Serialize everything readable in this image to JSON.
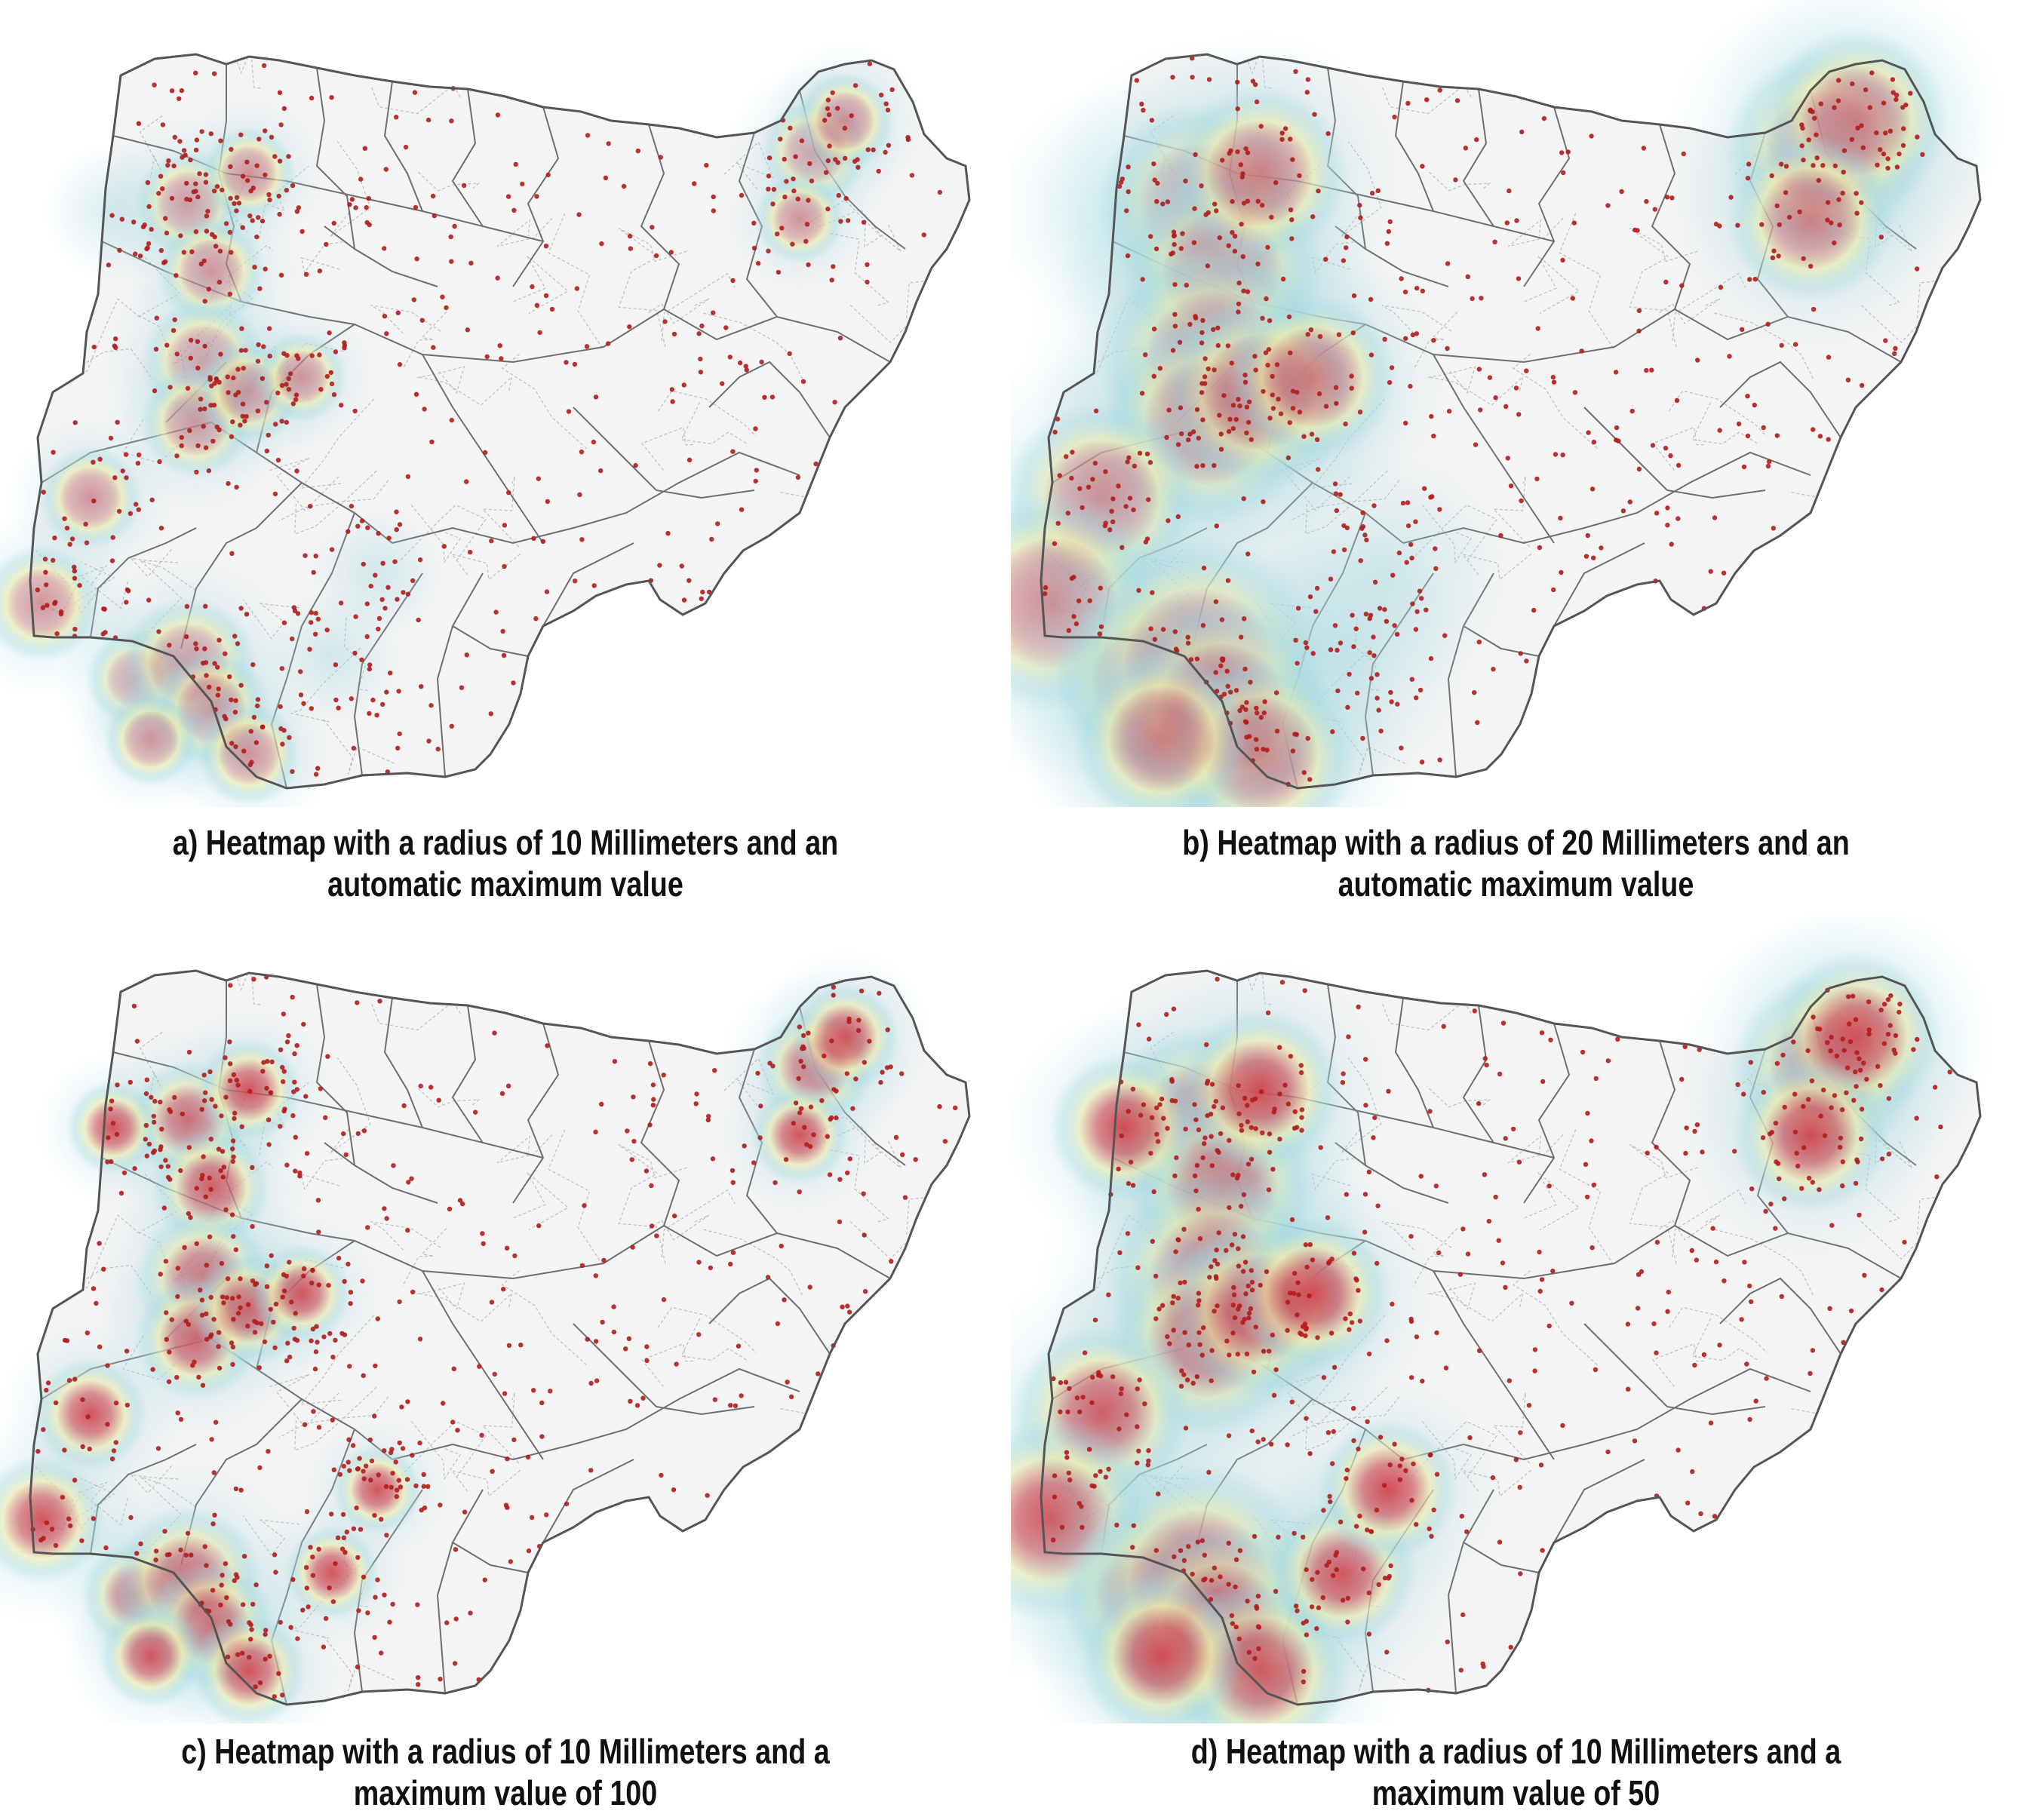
{
  "colors": {
    "map_fill": "#f4f4f4",
    "outer_border": "#555555",
    "state_border": "#6e6e6e",
    "lga_border": "#bdbdbd",
    "point": "#b11c1c",
    "heat_low": "#a6d9e0",
    "heat_mid": "#f7efa6",
    "heat_high": "#d4323c"
  },
  "panels": [
    {
      "id": "a",
      "caption_line1": "a) Heatmap with a radius of 10 Millimeters and an",
      "caption_line2": "automatic maximum value",
      "radius_mm": 10,
      "max_value": "automatic"
    },
    {
      "id": "b",
      "caption_line1": "b) Heatmap with a radius of 20 Millimeters and an",
      "caption_line2": "automatic maximum value",
      "radius_mm": 20,
      "max_value": "automatic"
    },
    {
      "id": "c",
      "caption_line1": "c) Heatmap with a radius of 10 Millimeters and a",
      "caption_line2": "maximum value of 100",
      "radius_mm": 10,
      "max_value": 100
    },
    {
      "id": "d",
      "caption_line1": "d) Heatmap with a radius of 10 Millimeters and a",
      "caption_line2": "maximum value of 50",
      "radius_mm": 10,
      "max_value": 50
    }
  ]
}
